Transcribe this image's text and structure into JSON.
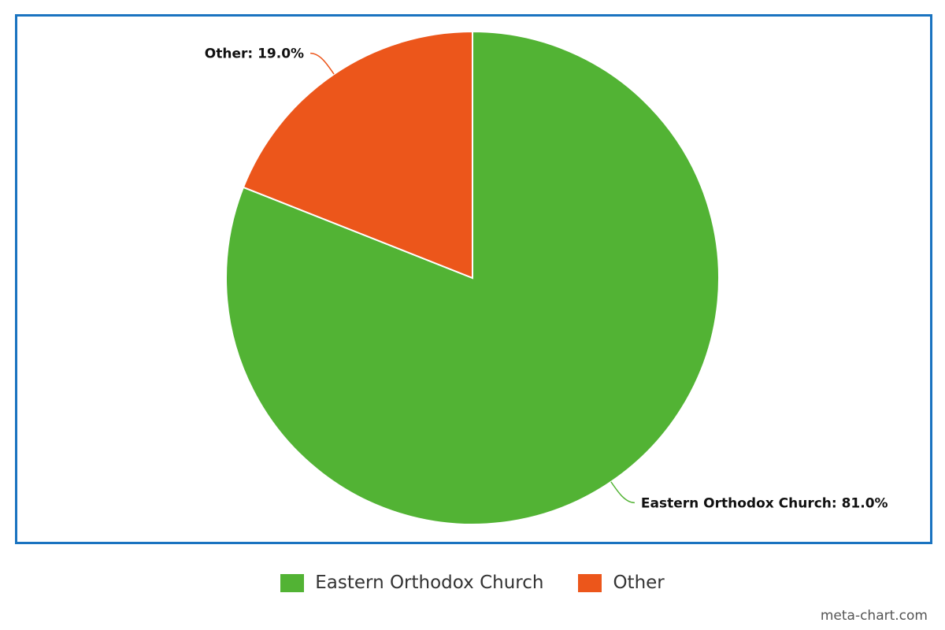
{
  "chart_data": {
    "type": "pie",
    "slices": [
      {
        "label": "Eastern Orthodox Church",
        "value": 81.0,
        "color": "#52b334",
        "data_label": "Eastern Orthodox Church: 81.0%"
      },
      {
        "label": "Other",
        "value": 19.0,
        "color": "#ec561b",
        "data_label": "Other: 19.0%"
      }
    ],
    "start_angle": "12 o'clock",
    "direction": "clockwise",
    "legend_position": "bottom-center",
    "frame_color": "#1a73c0"
  },
  "legend": {
    "items": [
      {
        "label": "Eastern Orthodox Church",
        "color": "#52b334"
      },
      {
        "label": "Other",
        "color": "#ec561b"
      }
    ]
  },
  "watermark": "meta-chart.com"
}
